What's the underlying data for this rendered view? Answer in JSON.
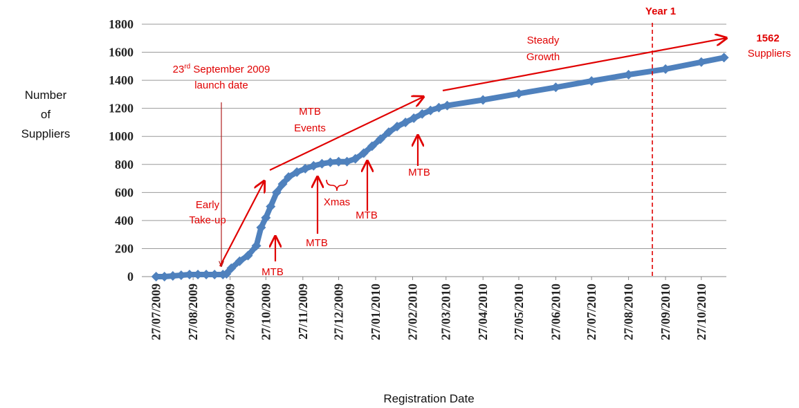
{
  "chart_data": {
    "type": "line",
    "x_label": "Registration Date",
    "y_label": [
      "Number",
      "of",
      "Suppliers"
    ],
    "x": [
      "27/07/2009",
      "03/08/2009",
      "10/08/2009",
      "17/08/2009",
      "24/08/2009",
      "31/08/2009",
      "07/09/2009",
      "14/09/2009",
      "21/09/2009",
      "24/09/2009",
      "28/09/2009",
      "05/10/2009",
      "12/10/2009",
      "19/10/2009",
      "23/10/2009",
      "27/10/2009",
      "31/10/2009",
      "05/11/2009",
      "10/11/2009",
      "15/11/2009",
      "22/11/2009",
      "29/11/2009",
      "06/12/2009",
      "13/12/2009",
      "20/12/2009",
      "27/12/2009",
      "03/01/2010",
      "10/01/2010",
      "17/01/2010",
      "24/01/2010",
      "31/01/2010",
      "07/02/2010",
      "14/02/2010",
      "21/02/2010",
      "28/02/2010",
      "07/03/2010",
      "14/03/2010",
      "21/03/2010",
      "28/03/2010",
      "27/04/2010",
      "27/05/2010",
      "27/06/2010",
      "27/07/2010",
      "27/08/2010",
      "27/09/2010",
      "27/10/2010",
      "15/11/2010"
    ],
    "series": [
      {
        "color": "#4f81bd",
        "values": [
          0,
          0,
          5,
          10,
          15,
          15,
          15,
          15,
          15,
          20,
          60,
          110,
          150,
          220,
          350,
          420,
          500,
          600,
          660,
          710,
          745,
          770,
          790,
          805,
          815,
          820,
          820,
          840,
          880,
          930,
          980,
          1030,
          1070,
          1100,
          1130,
          1160,
          1185,
          1205,
          1220,
          1260,
          1305,
          1350,
          1395,
          1440,
          1480,
          1530,
          1562
        ]
      }
    ],
    "xlim": [
      "15/07/2009",
      "17/11/2010"
    ],
    "xticks": [
      "27/07/2009",
      "27/08/2009",
      "27/09/2009",
      "27/10/2009",
      "27/11/2009",
      "27/12/2009",
      "27/01/2010",
      "27/02/2010",
      "27/03/2010",
      "27/04/2010",
      "27/05/2010",
      "27/06/2010",
      "27/07/2010",
      "27/08/2010",
      "27/09/2010",
      "27/10/2010"
    ],
    "ylim": [
      0,
      1800
    ],
    "yticks": [
      0,
      200,
      400,
      600,
      800,
      1000,
      1200,
      1400,
      1600,
      1800
    ],
    "grid": true,
    "annotations": [
      "Year 1",
      "1562",
      "Suppliers",
      "Steady",
      "Growth",
      "23",
      "rd",
      " September 2009",
      "launch date",
      "MTB",
      "Events",
      "Early",
      "Take-up",
      "MTB",
      "MTB",
      "Xmas",
      "MTB",
      "MTB"
    ]
  }
}
